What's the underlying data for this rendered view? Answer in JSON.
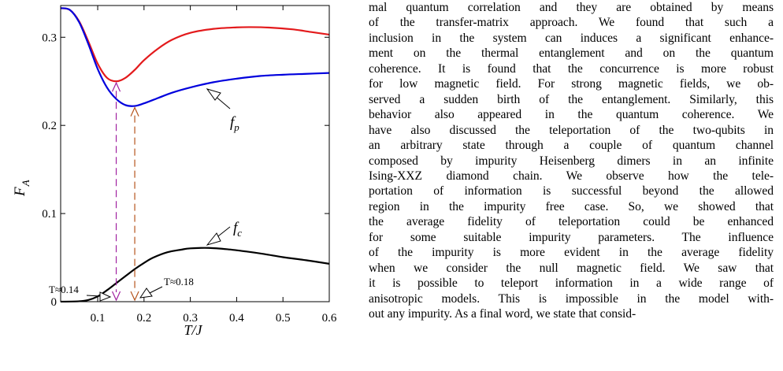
{
  "figure": {
    "y_axis_label": "F",
    "y_axis_subscript": "A",
    "x_axis_label": "T/J",
    "curve_labels": {
      "fp": {
        "main": "f",
        "sub": "p"
      },
      "fc": {
        "main": "f",
        "sub": "c"
      }
    },
    "annotations": [
      "T≈0.14",
      "T≈0.18"
    ],
    "colors": {
      "upper_curve": "#e31a1c",
      "fp_curve": "#0000dd",
      "fc_curve": "#000000",
      "arrow_014": "#a020a0",
      "arrow_018": "#b5541c"
    }
  },
  "chart_data": {
    "type": "line",
    "xlabel": "T/J",
    "ylabel": "F_A",
    "xlim": [
      0.02,
      0.6
    ],
    "ylim": [
      0,
      0.336
    ],
    "x_ticks": [
      "0.1",
      "0.2",
      "0.3",
      "0.4",
      "0.5",
      "0.6"
    ],
    "y_ticks": [
      "0",
      "0.1",
      "0.2",
      "0.3"
    ],
    "series": [
      {
        "name": "",
        "color": "#e31a1c",
        "x": [
          0.02,
          0.04,
          0.06,
          0.08,
          0.1,
          0.12,
          0.14,
          0.16,
          0.18,
          0.2,
          0.23,
          0.26,
          0.3,
          0.35,
          0.4,
          0.43,
          0.47,
          0.52,
          0.56,
          0.6
        ],
        "y": [
          0.333,
          0.331,
          0.318,
          0.295,
          0.27,
          0.254,
          0.25,
          0.254,
          0.263,
          0.274,
          0.287,
          0.297,
          0.305,
          0.3095,
          0.3112,
          0.3115,
          0.311,
          0.309,
          0.306,
          0.303
        ]
      },
      {
        "name": "f_p",
        "color": "#0000dd",
        "x": [
          0.02,
          0.04,
          0.06,
          0.08,
          0.1,
          0.12,
          0.14,
          0.16,
          0.18,
          0.2,
          0.23,
          0.26,
          0.3,
          0.35,
          0.4,
          0.45,
          0.5,
          0.55,
          0.6
        ],
        "y": [
          0.333,
          0.331,
          0.317,
          0.292,
          0.264,
          0.243,
          0.23,
          0.223,
          0.222,
          0.225,
          0.231,
          0.237,
          0.243,
          0.249,
          0.253,
          0.256,
          0.2575,
          0.2585,
          0.2595
        ]
      },
      {
        "name": "f_c",
        "color": "#000000",
        "x": [
          0.02,
          0.06,
          0.08,
          0.1,
          0.12,
          0.14,
          0.16,
          0.18,
          0.2,
          0.22,
          0.25,
          0.28,
          0.3,
          0.34,
          0.38,
          0.42,
          0.46,
          0.5,
          0.55,
          0.6
        ],
        "y": [
          0.0,
          0.0005,
          0.002,
          0.006,
          0.013,
          0.021,
          0.029,
          0.037,
          0.044,
          0.05,
          0.056,
          0.059,
          0.0605,
          0.061,
          0.0595,
          0.057,
          0.054,
          0.0505,
          0.047,
          0.043
        ]
      }
    ],
    "markers": [
      {
        "label": "T≈0.14",
        "x": 0.14,
        "y_top": 0.25,
        "color": "#a020a0"
      },
      {
        "label": "T≈0.18",
        "x": 0.18,
        "y_top": 0.222,
        "color": "#b5541c"
      }
    ]
  },
  "text_lines": [
    "mal quantum correlation and they are obtained by means",
    "of the transfer-matrix approach. We found that such a",
    "inclusion in the system can induces a significant enhance-",
    "ment on the thermal entanglement and on the quantum",
    "coherence. It is found that the concurrence is more robust",
    "for low magnetic field. For strong magnetic fields, we ob-",
    "served a sudden birth of the entanglement. Similarly, this",
    "behavior also appeared in the quantum coherence. We",
    "have also discussed the teleportation of the two-qubits in",
    "an arbitrary state through a couple of quantum channel",
    "composed by impurity Heisenberg dimers in an infinite",
    "Ising-XXZ diamond chain. We observe how the tele-",
    "portation of information is successful beyond the allowed",
    "region in the impurity free case. So, we showed that",
    "the average fidelity of teleportation could be enhanced",
    "for some suitable impurity parameters. The influence",
    "of the impurity is more evident in the average fidelity",
    "when we consider the null magnetic field. We saw that",
    "it is possible to teleport information in a wide range of",
    "anisotropic models. This is impossible in the model with-",
    "out any impurity. As a final word, we state that consid-"
  ]
}
